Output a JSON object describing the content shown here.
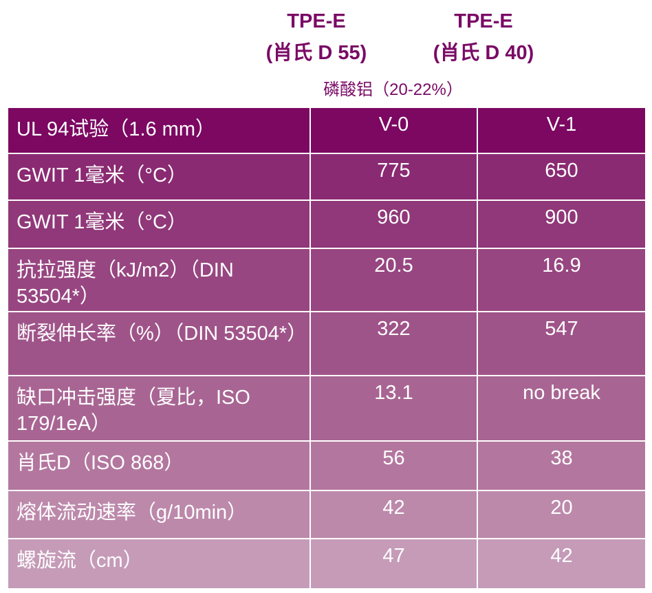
{
  "header": {
    "columns": [
      {
        "title": "TPE-E",
        "subtitle": "(肖氏 D 55)"
      },
      {
        "title": "TPE-E",
        "subtitle": "(肖氏 D 40)"
      }
    ],
    "subheader": "磷酸铝（20-22%）"
  },
  "table": {
    "rows": [
      [
        "UL 94试验（1.6 mm）",
        "V-0",
        "V-1"
      ],
      [
        "GWIT 1毫米（°C）",
        775,
        650
      ],
      [
        "GWIT 1毫米（°C）",
        960,
        900
      ],
      [
        "抗拉强度（kJ/m2）（DIN 53504*）",
        20.5,
        16.9
      ],
      [
        "断裂伸长率（%）（DIN 53504*）",
        322,
        547
      ],
      [
        "缺口冲击强度（夏比，ISO 179/1eA）",
        13.1,
        "no break"
      ],
      [
        "肖氏D（ISO 868）",
        56,
        38
      ],
      [
        "熔体流动速率（g/10min）",
        42,
        20
      ],
      [
        "螺旋流（cm）",
        47,
        42
      ]
    ]
  }
}
